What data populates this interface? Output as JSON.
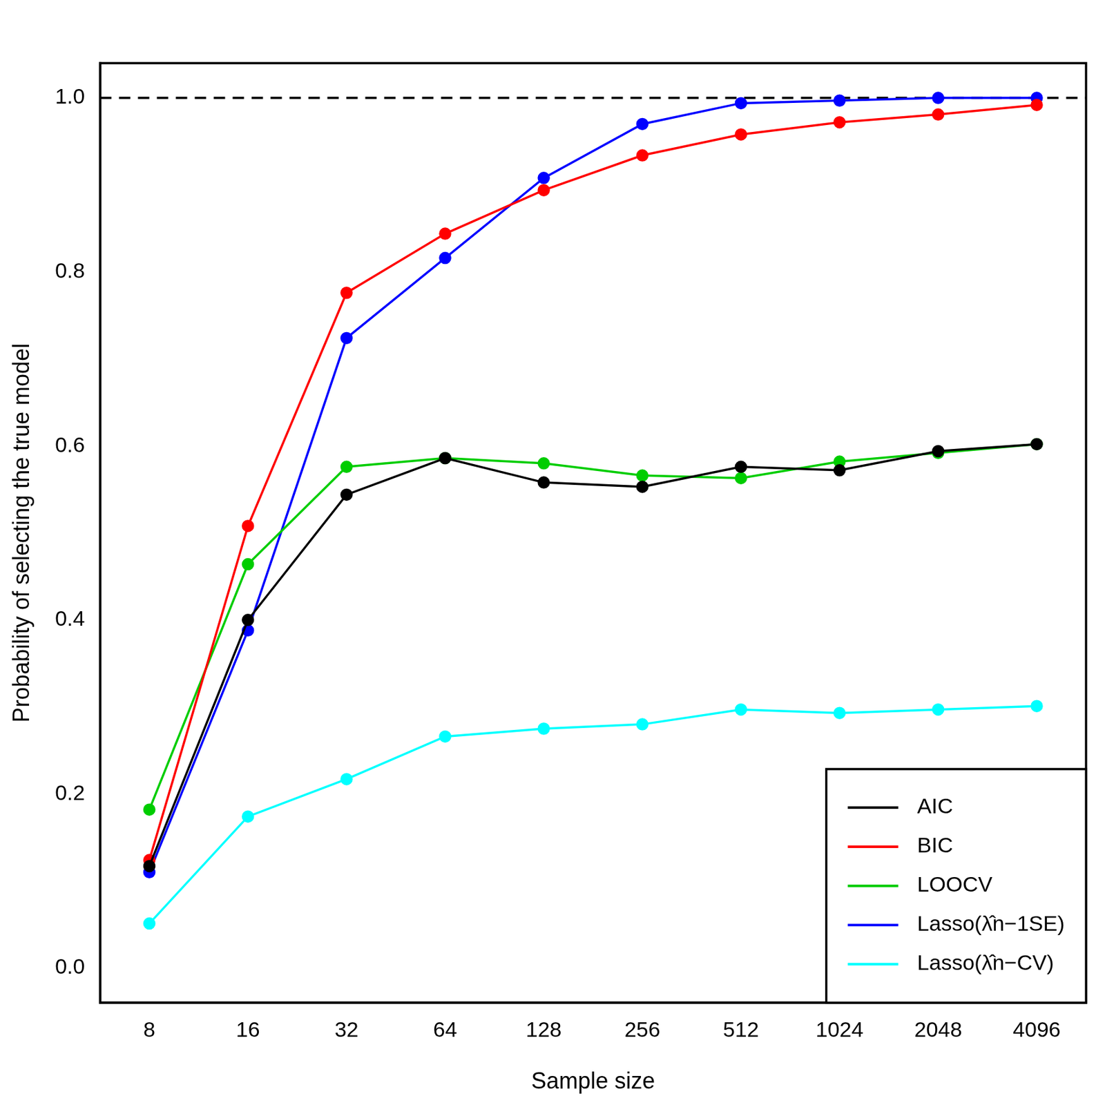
{
  "chart_data": {
    "type": "line",
    "x_label": "Sample size",
    "y_label": "Probability of selecting the true model",
    "categories": [
      "8",
      "16",
      "32",
      "64",
      "128",
      "256",
      "512",
      "1024",
      "2048",
      "4096"
    ],
    "ylim": [
      -0.04,
      1.04
    ],
    "yticks": [
      {
        "value": 0,
        "label": "0.0"
      },
      {
        "value": 0.2,
        "label": "0.2"
      },
      {
        "value": 0.4,
        "label": "0.4"
      },
      {
        "value": 0.6,
        "label": "0.6"
      },
      {
        "value": 0.8,
        "label": "0.8"
      },
      {
        "value": 1,
        "label": "1.0"
      }
    ],
    "grid": false,
    "legend": "bottom right",
    "marker": "circle",
    "hlines": [
      {
        "y": 1,
        "color": "#000000",
        "line_style": "dashed"
      }
    ],
    "series": [
      {
        "name": "AIC",
        "color": "#000000",
        "values": [
          0.117,
          0.4,
          0.544,
          0.586,
          0.558,
          0.553,
          0.576,
          0.572,
          0.594,
          0.602
        ]
      },
      {
        "name": "BIC",
        "color": "#ff0000",
        "values": [
          0.124,
          0.508,
          0.776,
          0.844,
          0.894,
          0.934,
          0.958,
          0.972,
          0.981,
          0.992
        ]
      },
      {
        "name": "LOOCV",
        "color": "#00cd00",
        "values": [
          0.182,
          0.464,
          0.576,
          0.586,
          0.58,
          0.566,
          0.563,
          0.582,
          0.592,
          0.602
        ]
      },
      {
        "name": "Lasso(λ̂n−1SE)",
        "color": "#0000ff",
        "values": [
          0.11,
          0.388,
          0.724,
          0.816,
          0.908,
          0.97,
          0.994,
          0.997,
          1.0,
          1.0
        ]
      },
      {
        "name": "Lasso(λ̂n−CV)",
        "color": "#00ffff",
        "values": [
          0.051,
          0.174,
          0.217,
          0.266,
          0.275,
          0.28,
          0.297,
          0.293,
          0.297,
          0.301
        ]
      }
    ]
  }
}
